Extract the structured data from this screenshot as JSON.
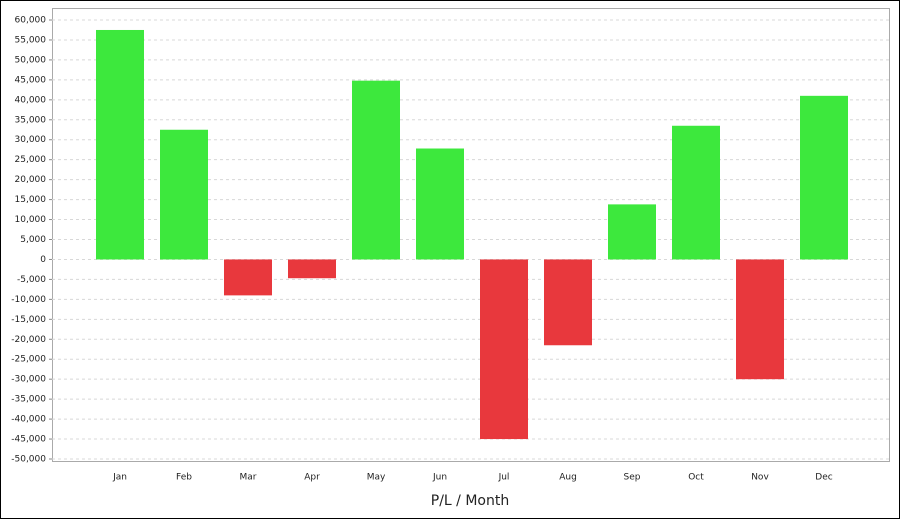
{
  "chart_data": {
    "type": "bar",
    "xlabel": "P/L / Month",
    "categories": [
      "Jan",
      "Feb",
      "Mar",
      "Apr",
      "May",
      "Jun",
      "Jul",
      "Aug",
      "Sep",
      "Oct",
      "Nov",
      "Dec"
    ],
    "values": [
      57500,
      32500,
      -9000,
      -4700,
      44800,
      27800,
      -45000,
      -21500,
      13800,
      33500,
      -30000,
      41000
    ],
    "positive_color": "#3de83d",
    "negative_color": "#e8383d",
    "ylim": [
      -50000,
      60000
    ],
    "yticks": [
      {
        "value": -50000,
        "label": "-50,000"
      },
      {
        "value": -45000,
        "label": "-45,000"
      },
      {
        "value": -40000,
        "label": "-40,000"
      },
      {
        "value": -35000,
        "label": "-35,000"
      },
      {
        "value": -30000,
        "label": "-30,000"
      },
      {
        "value": -25000,
        "label": "-25,000"
      },
      {
        "value": -20000,
        "label": "-20,000"
      },
      {
        "value": -15000,
        "label": "-15,000"
      },
      {
        "value": -10000,
        "label": "-10,000"
      },
      {
        "value": -5000,
        "label": "-5,000"
      },
      0,
      {
        "value": 5000,
        "label": "5,000"
      },
      {
        "value": 10000,
        "label": "10,000"
      },
      {
        "value": 15000,
        "label": "15,000"
      },
      {
        "value": 20000,
        "label": "20,000"
      },
      {
        "value": 25000,
        "label": "25,000"
      },
      {
        "value": 30000,
        "label": "30,000"
      },
      {
        "value": 35000,
        "label": "35,000"
      },
      {
        "value": 40000,
        "label": "40,000"
      },
      {
        "value": 45000,
        "label": "45,000"
      },
      {
        "value": 50000,
        "label": "50,000"
      },
      {
        "value": 55000,
        "label": "55,000"
      },
      {
        "value": 60000,
        "label": "60,000"
      }
    ],
    "grid": true
  }
}
